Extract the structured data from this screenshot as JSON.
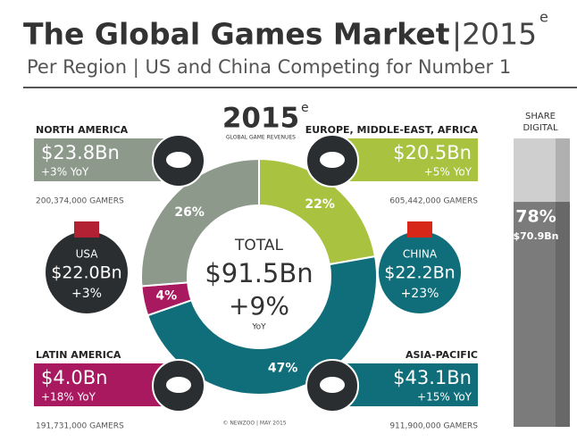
{
  "chart_data": {
    "type": "donut",
    "title": "The Global Games Market",
    "title_year": "|2015",
    "title_sup": "e",
    "subtitle": "Per Region | US and China Competing for Number 1",
    "center": {
      "year": "2015",
      "sup": "e",
      "caption": "GLOBAL GAME REVENUES",
      "total_label": "TOTAL",
      "total": "$91.5Bn",
      "growth": "+9%",
      "growth_unit": "YoY"
    },
    "categories": [
      "EUROPE, MIDDLE-EAST, AFRICA",
      "ASIA-PACIFIC",
      "LATIN AMERICA",
      "NORTH AMERICA"
    ],
    "values": [
      22,
      47,
      4,
      26
    ],
    "value_labels": [
      "22%",
      "47%",
      "4%",
      "26%"
    ],
    "colors": [
      "#a9c23f",
      "#0f6e7a",
      "#a8195f",
      "#8d9a8b"
    ],
    "panels": [
      {
        "revenue": "$20.5Bn",
        "growth": "+5% YoY",
        "gamers": "605,442,000 GAMERS"
      },
      {
        "revenue": "$43.1Bn",
        "growth": "+15% YoY",
        "gamers": "911,900,000 GAMERS"
      },
      {
        "revenue": "$4.0Bn",
        "growth": "+18% YoY",
        "gamers": "191,731,000 GAMERS"
      },
      {
        "revenue": "$23.8Bn",
        "growth": "+3% YoY",
        "gamers": "200,374,000 GAMERS"
      }
    ],
    "countries": [
      {
        "name": "USA",
        "revenue": "$22.0Bn",
        "growth": "+3%"
      },
      {
        "name": "CHINA",
        "revenue": "$22.2Bn",
        "growth": "+23%"
      }
    ],
    "share_digital": {
      "label": [
        "SHARE",
        "DIGITAL"
      ],
      "value": 78,
      "value_label": "78%",
      "revenue": "$70.9Bn"
    },
    "footer": "© NEWZOO | MAY 2015"
  }
}
